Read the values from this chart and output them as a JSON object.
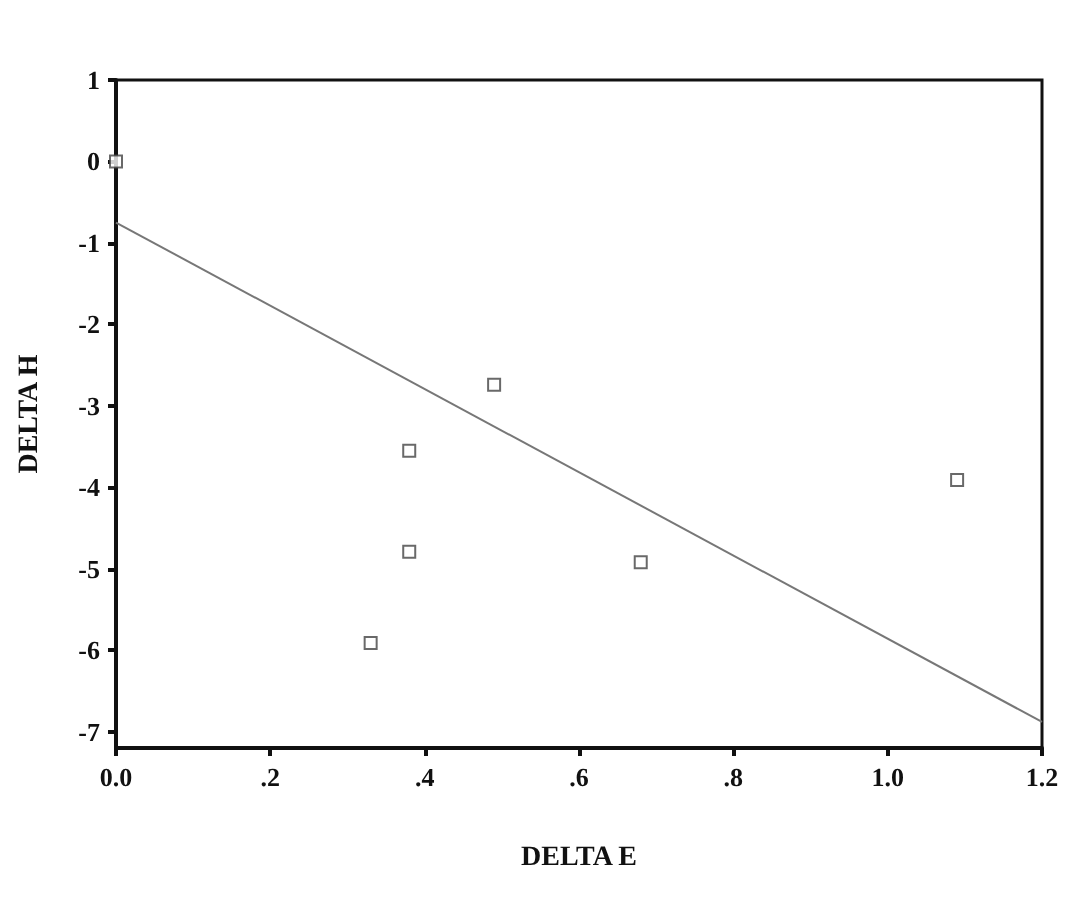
{
  "chart_data": {
    "type": "scatter",
    "xlabel": "DELTA E",
    "ylabel": "DELTA H",
    "series": [
      {
        "type": "scatter",
        "color": "#444444",
        "marker": "square",
        "x": [
          0,
          0.33,
          0.38,
          0.38,
          0.49,
          0.68,
          1.09
        ],
        "values": [
          0,
          -5.91,
          -4.79,
          -3.55,
          -2.74,
          -4.92,
          -3.91
        ]
      },
      {
        "type": "line",
        "color": "#777777",
        "marker": "none",
        "x": [
          0,
          1.2
        ],
        "values": [
          -0.75,
          -6.88
        ]
      }
    ],
    "xlim": [
      0,
      1.2
    ],
    "xticks": [
      {
        "value": 0,
        "label": "0.0"
      },
      {
        "value": 0.2,
        "label": ".2"
      },
      {
        "value": 0.4,
        "label": ".4"
      },
      {
        "value": 0.6,
        "label": ".6"
      },
      {
        "value": 0.8,
        "label": ".8"
      },
      {
        "value": 1,
        "label": "1.0"
      },
      {
        "value": 1.2,
        "label": "1.2"
      }
    ],
    "ylim": [
      -7.2,
      1
    ],
    "yticks": [
      -7,
      -6,
      -5,
      -4,
      -3,
      -2,
      -1,
      0,
      1
    ],
    "grid": false
  }
}
